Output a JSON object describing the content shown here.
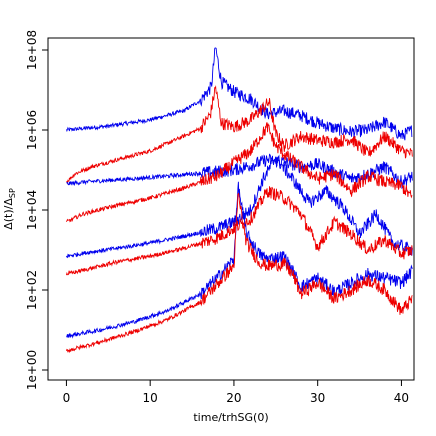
{
  "chart_data": {
    "type": "line",
    "title": "",
    "xlabel": "time/trhSG(0)",
    "ylabel": "Δ(t)/Δ",
    "ylabel_subscript": "SP",
    "xlim": [
      -2.2,
      41.5
    ],
    "ylim": [
      1e-08,
      200000000
    ],
    "y_log_exponent_range": [
      -0.25,
      8.3
    ],
    "y_scale": "log",
    "grid": false,
    "legend": "none",
    "x_ticks": [
      0,
      10,
      20,
      30,
      40
    ],
    "x_tick_labels": [
      "0",
      "10",
      "20",
      "30",
      "40"
    ],
    "y_ticks": [
      1,
      100,
      10000,
      1000000,
      100000000
    ],
    "y_tick_labels": [
      "1e+00",
      "1e+02",
      "1e+04",
      "1e+06",
      "1e+08"
    ],
    "colors": {
      "blue": "#0000ee",
      "red": "#ee0000"
    },
    "series": [
      {
        "color": "blue",
        "x": [
          0,
          5,
          10,
          14,
          16,
          17.3,
          17.8,
          18.5,
          20,
          22,
          24,
          26,
          28,
          30,
          32,
          34,
          36,
          38,
          40,
          41.3
        ],
        "y": [
          1000000,
          1250000,
          1800000,
          3000000,
          5500000,
          12000000,
          120000000,
          16000000,
          9000000,
          6000000,
          2500000,
          3000000,
          2300000,
          1500000,
          1100000,
          900000,
          1000000,
          1600000,
          700000,
          1000000
        ]
      },
      {
        "color": "red",
        "x": [
          0,
          1,
          3,
          6,
          10,
          14,
          16,
          17.2,
          17.8,
          18.5,
          20,
          22,
          24.2,
          25,
          26,
          28,
          30,
          32,
          34,
          36,
          38,
          40,
          41.3
        ],
        "y": [
          50000,
          80000,
          120000,
          180000,
          300000,
          700000,
          1100000,
          2500000,
          12000000,
          1500000,
          1200000,
          1800000,
          5000000,
          800000,
          400000,
          700000,
          550000,
          500000,
          600000,
          250000,
          700000,
          300000,
          250000
        ]
      },
      {
        "color": "blue",
        "x": [
          0,
          2,
          5,
          10,
          15,
          20,
          22,
          24,
          26,
          28,
          30,
          32,
          34,
          36,
          38,
          40,
          41.3
        ],
        "y": [
          45000,
          50000,
          55000,
          65000,
          80000,
          100000,
          130000,
          180000,
          160000,
          120000,
          140000,
          90000,
          60000,
          80000,
          120000,
          50000,
          70000
        ]
      },
      {
        "color": "red",
        "x": [
          0,
          2,
          6,
          10,
          14,
          18,
          20,
          22,
          24,
          25,
          26,
          28,
          30,
          32,
          34,
          36,
          38,
          40,
          41.3
        ],
        "y": [
          5000,
          8000,
          13000,
          20000,
          35000,
          70000,
          150000,
          300000,
          1200000,
          400000,
          250000,
          120000,
          60000,
          80000,
          30000,
          70000,
          50000,
          40000,
          20000
        ]
      },
      {
        "color": "blue",
        "x": [
          0,
          3,
          6,
          10,
          14,
          18,
          20,
          22,
          23.5,
          25,
          27,
          29,
          31,
          33,
          35,
          37,
          39,
          41.3
        ],
        "y": [
          700,
          900,
          1100,
          1500,
          2200,
          3500,
          5000,
          10000,
          60000,
          200000,
          60000,
          15000,
          30000,
          12000,
          2500,
          8000,
          1500,
          1000
        ]
      },
      {
        "color": "red",
        "x": [
          0,
          3,
          6,
          10,
          14,
          18,
          20,
          22,
          24,
          26,
          28,
          30,
          32,
          34,
          36,
          38,
          40,
          41.3
        ],
        "y": [
          250,
          350,
          500,
          700,
          1100,
          2000,
          3500,
          6000,
          30000,
          20000,
          8000,
          1200,
          5000,
          2500,
          1000,
          1800,
          800,
          1000
        ]
      },
      {
        "color": "blue",
        "x": [
          0,
          4,
          8,
          12,
          16,
          18,
          20,
          20.5,
          21.5,
          23,
          24,
          26,
          27,
          28,
          30,
          32,
          34,
          36,
          38,
          40,
          41.3
        ],
        "y": [
          7,
          10,
          16,
          30,
          80,
          200,
          600,
          40000,
          2500,
          800,
          600,
          700,
          300,
          120,
          200,
          90,
          150,
          250,
          200,
          150,
          300
        ]
      },
      {
        "color": "red",
        "x": [
          0,
          4,
          8,
          12,
          16,
          18,
          20,
          20.5,
          21.5,
          23,
          24,
          26,
          27,
          28,
          30,
          32,
          34,
          36,
          38,
          40,
          41.3
        ],
        "y": [
          3,
          5,
          9,
          18,
          50,
          140,
          400,
          25000,
          1500,
          500,
          400,
          450,
          250,
          80,
          150,
          60,
          100,
          180,
          100,
          30,
          60
        ]
      }
    ]
  }
}
